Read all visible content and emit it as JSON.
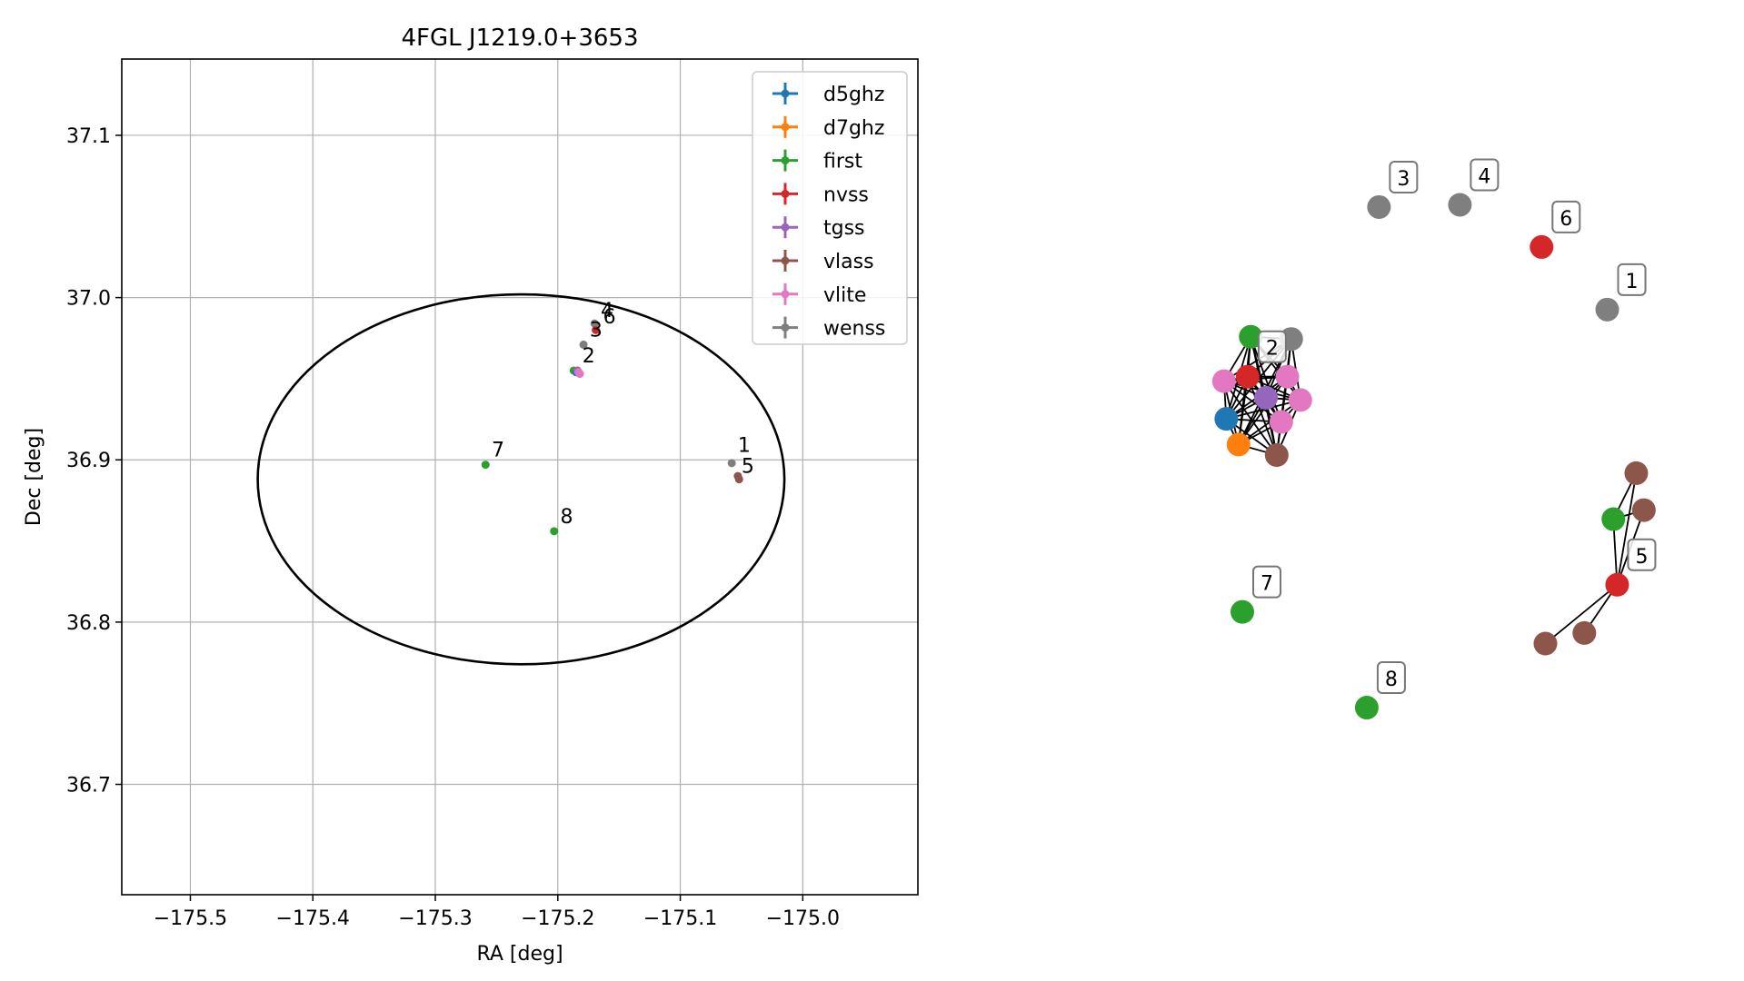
{
  "chart_data": [
    {
      "type": "scatter",
      "title": "4FGL J1219.0+3653",
      "xlabel": "RA [deg]",
      "ylabel": "Dec [deg]",
      "xlim": [
        -175.556,
        -174.906
      ],
      "ylim": [
        36.632,
        37.147
      ],
      "xticks": [
        -175.5,
        -175.4,
        -175.3,
        -175.2,
        -175.1,
        -175.0
      ],
      "xtick_labels": [
        "−175.5",
        "−175.4",
        "−175.3",
        "−175.2",
        "−175.1",
        "−175.0"
      ],
      "yticks": [
        36.7,
        36.8,
        36.9,
        37.0,
        37.1
      ],
      "ytick_labels": [
        "36.7",
        "36.8",
        "36.9",
        "37.0",
        "37.1"
      ],
      "grid": true,
      "legend_position": "top-right",
      "legend": [
        {
          "name": "d5ghz",
          "color": "#1f77b4"
        },
        {
          "name": "d7ghz",
          "color": "#ff7f0e"
        },
        {
          "name": "first",
          "color": "#2ca02c"
        },
        {
          "name": "nvss",
          "color": "#d62728"
        },
        {
          "name": "tgss",
          "color": "#9467bd"
        },
        {
          "name": "vlass",
          "color": "#8c564b"
        },
        {
          "name": "vlite",
          "color": "#e377c2"
        },
        {
          "name": "wenss",
          "color": "#7f7f7f"
        }
      ],
      "ellipse": {
        "center_ra": -175.23,
        "center_dec": 36.888,
        "semi_ra": 0.215,
        "semi_dec": 0.114,
        "color": "#000000"
      },
      "points": [
        {
          "ra": -175.058,
          "dec": 36.898,
          "color": "#7f7f7f"
        },
        {
          "ra": -175.052,
          "dec": 36.888,
          "color": "#8c564b"
        },
        {
          "ra": -175.053,
          "dec": 36.89,
          "color": "#8c564b"
        },
        {
          "ra": -175.259,
          "dec": 36.897,
          "color": "#2ca02c"
        },
        {
          "ra": -175.203,
          "dec": 36.856,
          "color": "#2ca02c"
        },
        {
          "ra": -175.187,
          "dec": 36.955,
          "color": "#2ca02c"
        },
        {
          "ra": -175.185,
          "dec": 36.954,
          "color": "#1f77b4"
        },
        {
          "ra": -175.184,
          "dec": 36.955,
          "color": "#ff7f0e"
        },
        {
          "ra": -175.184,
          "dec": 36.955,
          "color": "#9467bd"
        },
        {
          "ra": -175.183,
          "dec": 36.954,
          "color": "#e377c2"
        },
        {
          "ra": -175.182,
          "dec": 36.953,
          "color": "#e377c2"
        },
        {
          "ra": -175.179,
          "dec": 36.971,
          "color": "#7f7f7f"
        },
        {
          "ra": -175.17,
          "dec": 36.984,
          "color": "#7f7f7f"
        },
        {
          "ra": -175.169,
          "dec": 36.98,
          "color": "#d62728"
        }
      ],
      "point_labels": [
        {
          "text": "1",
          "ra": -175.053,
          "dec": 36.905
        },
        {
          "text": "5",
          "ra": -175.05,
          "dec": 36.892
        },
        {
          "text": "7",
          "ra": -175.254,
          "dec": 36.902
        },
        {
          "text": "8",
          "ra": -175.198,
          "dec": 36.861
        },
        {
          "text": "2",
          "ra": -175.18,
          "dec": 36.96
        },
        {
          "text": "3",
          "ra": -175.174,
          "dec": 36.976
        },
        {
          "text": "4",
          "ra": -175.165,
          "dec": 36.988
        },
        {
          "text": "6",
          "ra": -175.163,
          "dec": 36.984
        }
      ]
    },
    {
      "type": "diagram",
      "nodes": [
        {
          "id": "n1",
          "x": 0.903,
          "y": 0.254,
          "color": "#7f7f7f",
          "label": "1"
        },
        {
          "id": "n3",
          "x": 0.604,
          "y": 0.118,
          "color": "#7f7f7f",
          "label": "3"
        },
        {
          "id": "n4",
          "x": 0.71,
          "y": 0.115,
          "color": "#7f7f7f",
          "label": "4"
        },
        {
          "id": "n6",
          "x": 0.817,
          "y": 0.171,
          "color": "#d62728",
          "label": "6"
        },
        {
          "id": "n7",
          "x": 0.425,
          "y": 0.655,
          "color": "#2ca02c",
          "label": "7"
        },
        {
          "id": "n8",
          "x": 0.588,
          "y": 0.782,
          "color": "#2ca02c",
          "label": "8"
        },
        {
          "id": "a1",
          "x": 0.436,
          "y": 0.29,
          "color": "#2ca02c"
        },
        {
          "id": "a2",
          "x": 0.489,
          "y": 0.293,
          "color": "#7f7f7f"
        },
        {
          "id": "a3",
          "x": 0.401,
          "y": 0.349,
          "color": "#e377c2"
        },
        {
          "id": "a4",
          "x": 0.432,
          "y": 0.343,
          "color": "#d62728",
          "label": "2"
        },
        {
          "id": "a5",
          "x": 0.484,
          "y": 0.343,
          "color": "#e377c2"
        },
        {
          "id": "a6",
          "x": 0.456,
          "y": 0.371,
          "color": "#9467bd"
        },
        {
          "id": "a7",
          "x": 0.501,
          "y": 0.374,
          "color": "#e377c2"
        },
        {
          "id": "a8",
          "x": 0.404,
          "y": 0.399,
          "color": "#1f77b4"
        },
        {
          "id": "a9",
          "x": 0.476,
          "y": 0.403,
          "color": "#e377c2"
        },
        {
          "id": "a10",
          "x": 0.42,
          "y": 0.433,
          "color": "#ff7f0e"
        },
        {
          "id": "a11",
          "x": 0.47,
          "y": 0.447,
          "color": "#8c564b"
        },
        {
          "id": "b1",
          "x": 0.941,
          "y": 0.471,
          "color": "#8c564b"
        },
        {
          "id": "b2",
          "x": 0.911,
          "y": 0.532,
          "color": "#2ca02c"
        },
        {
          "id": "b3",
          "x": 0.951,
          "y": 0.52,
          "color": "#8c564b"
        },
        {
          "id": "b4",
          "x": 0.916,
          "y": 0.619,
          "color": "#d62728",
          "label": "5"
        },
        {
          "id": "b5",
          "x": 0.873,
          "y": 0.683,
          "color": "#8c564b"
        },
        {
          "id": "b6",
          "x": 0.822,
          "y": 0.697,
          "color": "#8c564b"
        }
      ],
      "edges": [
        [
          "a1",
          "a2"
        ],
        [
          "a1",
          "a3"
        ],
        [
          "a1",
          "a4"
        ],
        [
          "a1",
          "a5"
        ],
        [
          "a1",
          "a6"
        ],
        [
          "a1",
          "a7"
        ],
        [
          "a1",
          "a8"
        ],
        [
          "a1",
          "a9"
        ],
        [
          "a1",
          "a10"
        ],
        [
          "a1",
          "a11"
        ],
        [
          "a2",
          "a3"
        ],
        [
          "a2",
          "a4"
        ],
        [
          "a2",
          "a5"
        ],
        [
          "a2",
          "a6"
        ],
        [
          "a2",
          "a7"
        ],
        [
          "a2",
          "a8"
        ],
        [
          "a2",
          "a9"
        ],
        [
          "a2",
          "a10"
        ],
        [
          "a2",
          "a11"
        ],
        [
          "a3",
          "a4"
        ],
        [
          "a3",
          "a5"
        ],
        [
          "a3",
          "a6"
        ],
        [
          "a3",
          "a7"
        ],
        [
          "a3",
          "a8"
        ],
        [
          "a3",
          "a9"
        ],
        [
          "a3",
          "a10"
        ],
        [
          "a3",
          "a11"
        ],
        [
          "a4",
          "a5"
        ],
        [
          "a4",
          "a6"
        ],
        [
          "a4",
          "a7"
        ],
        [
          "a4",
          "a8"
        ],
        [
          "a4",
          "a9"
        ],
        [
          "a4",
          "a10"
        ],
        [
          "a4",
          "a11"
        ],
        [
          "a5",
          "a6"
        ],
        [
          "a5",
          "a7"
        ],
        [
          "a5",
          "a8"
        ],
        [
          "a5",
          "a9"
        ],
        [
          "a5",
          "a10"
        ],
        [
          "a5",
          "a11"
        ],
        [
          "a6",
          "a7"
        ],
        [
          "a6",
          "a8"
        ],
        [
          "a6",
          "a9"
        ],
        [
          "a6",
          "a10"
        ],
        [
          "a6",
          "a11"
        ],
        [
          "a7",
          "a8"
        ],
        [
          "a7",
          "a9"
        ],
        [
          "a7",
          "a10"
        ],
        [
          "a7",
          "a11"
        ],
        [
          "a8",
          "a9"
        ],
        [
          "a8",
          "a10"
        ],
        [
          "a8",
          "a11"
        ],
        [
          "a9",
          "a10"
        ],
        [
          "a9",
          "a11"
        ],
        [
          "a10",
          "a11"
        ],
        [
          "b1",
          "b2"
        ],
        [
          "b1",
          "b4"
        ],
        [
          "b2",
          "b3"
        ],
        [
          "b2",
          "b4"
        ],
        [
          "b3",
          "b4"
        ],
        [
          "b4",
          "b5"
        ],
        [
          "b4",
          "b6"
        ]
      ]
    }
  ]
}
